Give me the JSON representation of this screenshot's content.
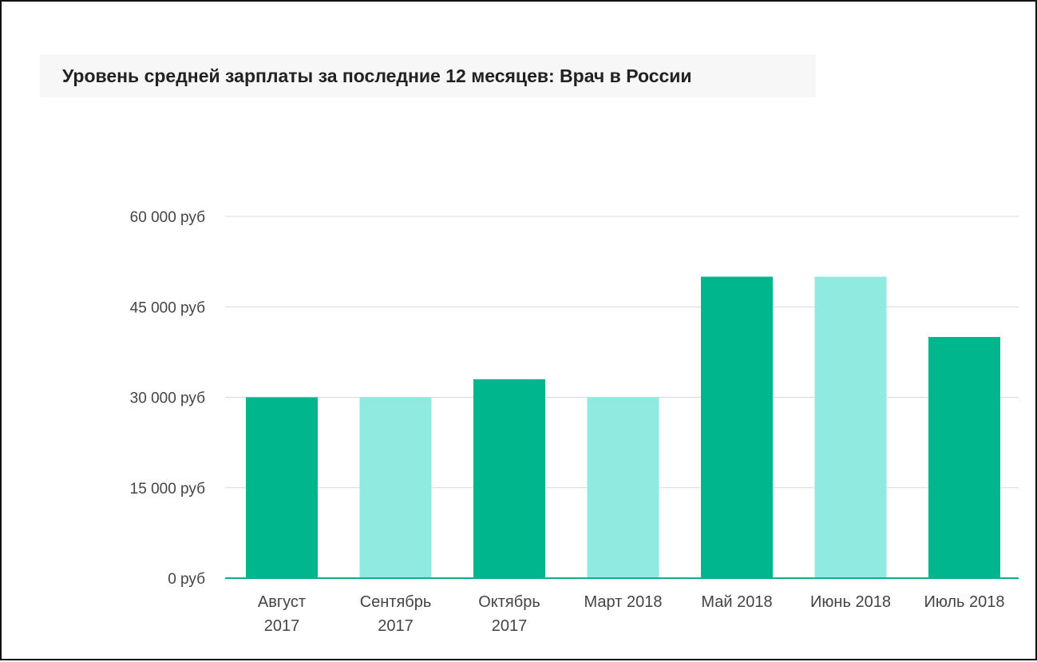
{
  "chart_data": {
    "type": "bar",
    "title": "Уровень средней зарплаты за последние 12 месяцев: Врач в России",
    "categories": [
      [
        "Август",
        "2017"
      ],
      [
        "Сентябрь",
        "2017"
      ],
      [
        "Октябрь",
        "2017"
      ],
      [
        "Март 2018"
      ],
      [
        "Май 2018"
      ],
      [
        "Июнь 2018"
      ],
      [
        "Июль 2018"
      ]
    ],
    "values": [
      30000,
      30000,
      33000,
      30000,
      50000,
      50000,
      40000
    ],
    "bar_colors": [
      "#00b68c",
      "#91eae0",
      "#00b68c",
      "#91eae0",
      "#00b68c",
      "#91eae0",
      "#00b68c"
    ],
    "ylim": [
      0,
      60000
    ],
    "yticks": [
      {
        "value": 0,
        "label": "0 руб"
      },
      {
        "value": 15000,
        "label": "15 000 руб"
      },
      {
        "value": 30000,
        "label": "30 000 руб"
      },
      {
        "value": 45000,
        "label": "45 000 руб"
      },
      {
        "value": 60000,
        "label": "60 000 руб"
      }
    ],
    "grid": true,
    "legend": "none",
    "colors": {
      "gridline": "#d9d9d9",
      "baseline": "#0fae8c",
      "tick_label": "#444444"
    }
  }
}
